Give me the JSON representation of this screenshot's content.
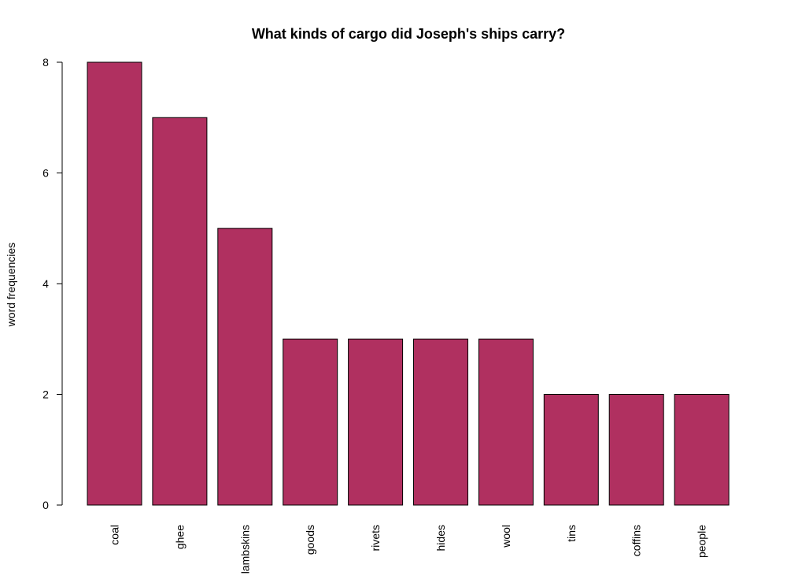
{
  "chart_data": {
    "type": "bar",
    "title": "What kinds of cargo did Joseph's ships carry?",
    "xlabel": "",
    "ylabel": "word frequencies",
    "categories": [
      "coal",
      "ghee",
      "lambskins",
      "goods",
      "rivets",
      "hides",
      "wool",
      "tins",
      "coffins",
      "people"
    ],
    "values": [
      8,
      7,
      5,
      3,
      3,
      3,
      3,
      2,
      2,
      2
    ],
    "ylim": [
      0,
      8
    ],
    "yticks": [
      0,
      2,
      4,
      6,
      8
    ],
    "bar_color": "#B03060",
    "bar_border_color": "#000000",
    "grid": false,
    "legend": "none"
  }
}
